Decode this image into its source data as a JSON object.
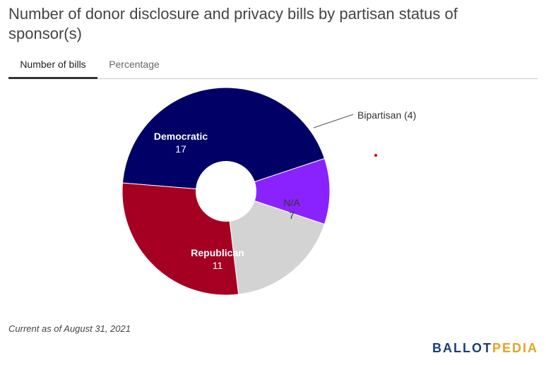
{
  "title": "Number of donor disclosure and privacy bills by partisan status of sponsor(s)",
  "tabs": [
    {
      "label": "Number of bills",
      "active": true
    },
    {
      "label": "Percentage",
      "active": false
    }
  ],
  "chart_data": {
    "type": "pie",
    "donut": true,
    "slices": [
      {
        "label": "Democratic",
        "value": 17,
        "color": "#000066",
        "label_color": "#ffffff",
        "label_text": "Democratic",
        "value_text": "17"
      },
      {
        "label": "Bipartisan",
        "value": 4,
        "color": "#8a22ff",
        "label_color": "#333333",
        "label_text": "Bipartisan (4)",
        "value_text": ""
      },
      {
        "label": "N/A",
        "value": 7,
        "color": "#d3d3d3",
        "label_color": "#333333",
        "label_text": "N/A",
        "value_text": "7"
      },
      {
        "label": "Republican",
        "value": 11,
        "color": "#a50021",
        "label_color": "#ffffff",
        "label_text": "Republican",
        "value_text": "11"
      }
    ]
  },
  "footnote": "Current as of August 31, 2021",
  "logo": {
    "part1": "BALLOT",
    "part2": "PEDIA"
  }
}
